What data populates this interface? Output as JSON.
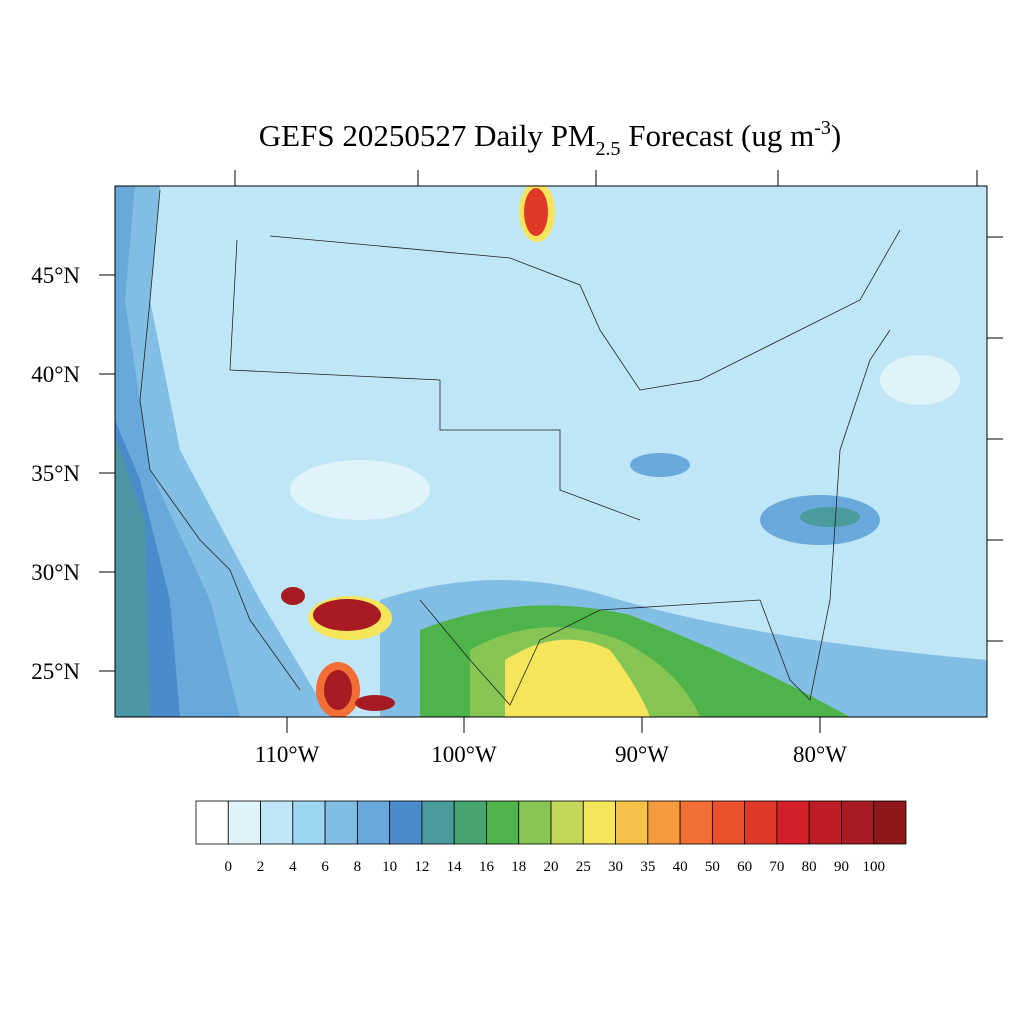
{
  "title": {
    "main": "GEFS 20250527 Daily PM",
    "sub": "2.5",
    "mid": " Forecast (ug m",
    "sup": "-3",
    "end": ")"
  },
  "lat_labels": [
    "45°N",
    "40°N",
    "35°N",
    "30°N",
    "25°N"
  ],
  "lon_labels": [
    "110°W",
    "100°W",
    "90°W",
    "80°W"
  ],
  "colorbar": {
    "levels": [
      0,
      2,
      4,
      6,
      8,
      10,
      12,
      14,
      16,
      18,
      20,
      25,
      30,
      35,
      40,
      50,
      60,
      70,
      80,
      90,
      100
    ],
    "colors": [
      "#ffffff",
      "#e0f3fb",
      "#bfe6f7",
      "#9dd6f2",
      "#82bde3",
      "#68a8da",
      "#4a8ccb",
      "#4b9a9c",
      "#46a46e",
      "#4db34a",
      "#86c454",
      "#c3d65a",
      "#f5e55a",
      "#f7c048",
      "#f59b3e",
      "#f26e34",
      "#e8512b",
      "#de3a27",
      "#d41f2b",
      "#bf1c26",
      "#a91b22",
      "#8e1719"
    ]
  }
}
